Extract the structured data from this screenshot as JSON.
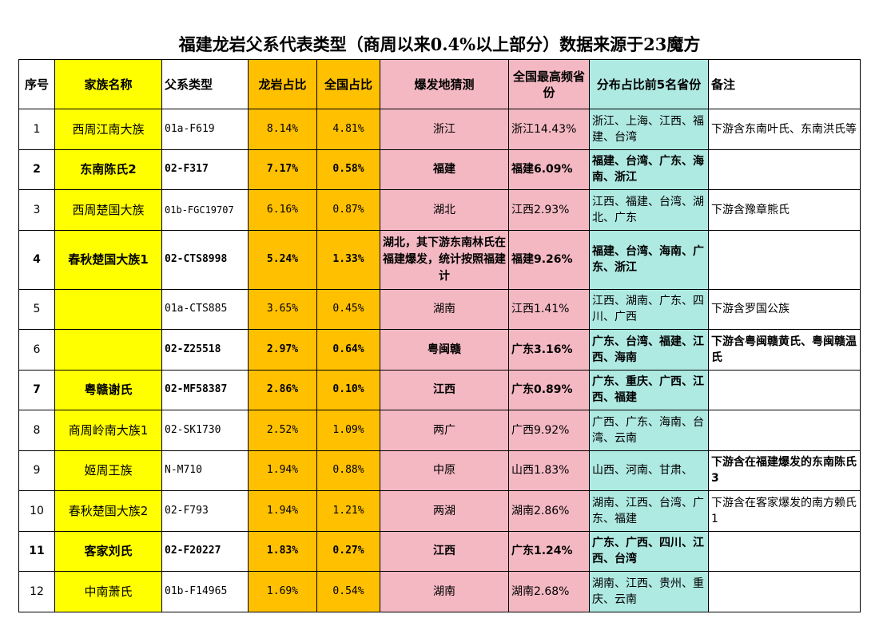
{
  "title": "福建龙岩父系代表类型（商周以来0.4%以上部分）数据来源于23魔方",
  "colors": {
    "yellow": "#ffff00",
    "orange": "#ffc000",
    "pink": "#f4b8c2",
    "teal": "#aee9e2",
    "white": "#ffffff"
  },
  "headers": {
    "num": "序号",
    "family": "家族名称",
    "type": "父系类型",
    "longyan": "龙岩占比",
    "national": "全国占比",
    "burst": "爆发地猜测",
    "highest": "全国最高频省份",
    "dist": "分布占比前5名省份",
    "note": "备注"
  },
  "rows": [
    {
      "num": "1",
      "family": "西周江南大族",
      "type": "01a-F619",
      "longyan": "8.14%",
      "national": "4.81%",
      "burst": "浙江",
      "highest": "浙江14.43%",
      "dist": "浙江、上海、江西、福建、台湾",
      "note": "下游含东南叶氏、东南洪氏等"
    },
    {
      "num": "2",
      "family": "东南陈氏2",
      "type": "02-F317",
      "longyan": "7.17%",
      "national": "0.58%",
      "burst": "福建",
      "highest": "福建6.09%",
      "dist": "福建、台湾、广东、海南、浙江",
      "note": ""
    },
    {
      "num": "3",
      "family": "西周楚国大族",
      "type": "01b-FGC19707",
      "longyan": "6.16%",
      "national": "0.87%",
      "burst": "湖北",
      "highest": "江西2.93%",
      "dist": "江西、福建、台湾、湖北、广东",
      "note": "下游含豫章熊氏"
    },
    {
      "num": "4",
      "family": "春秋楚国大族1",
      "type": "02-CTS8998",
      "longyan": "5.24%",
      "national": "1.33%",
      "burst": "湖北，其下游东南林氏在福建爆发，统计按照福建计",
      "highest": "福建9.26%",
      "dist": "福建、台湾、海南、广东、浙江",
      "note": ""
    },
    {
      "num": "5",
      "family": "",
      "type": "01a-CTS885",
      "longyan": "3.65%",
      "national": "0.45%",
      "burst": "湖南",
      "highest": "江西1.41%",
      "dist": "江西、湖南、广东、四川、广西",
      "note": "下游含罗国公族"
    },
    {
      "num": "6",
      "family": "",
      "type": "02-Z25518",
      "longyan": "2.97%",
      "national": "0.64%",
      "burst": "粤闽赣",
      "highest": "广东3.16%",
      "dist": "广东、台湾、福建、江西、海南",
      "note": "下游含粤闽赣黄氏、粤闽赣温氏"
    },
    {
      "num": "7",
      "family": "粤赣谢氏",
      "type": "02-MF58387",
      "longyan": "2.86%",
      "national": "0.10%",
      "burst": "江西",
      "highest": "广东0.89%",
      "dist": "广东、重庆、广西、江西、福建",
      "note": ""
    },
    {
      "num": "8",
      "family": "商周岭南大族1",
      "type": "02-SK1730",
      "longyan": "2.52%",
      "national": "1.09%",
      "burst": "两广",
      "highest": "广西9.92%",
      "dist": "广西、广东、海南、台湾、云南",
      "note": ""
    },
    {
      "num": "9",
      "family": "姬周王族",
      "type": "N-M710",
      "longyan": "1.94%",
      "national": "0.88%",
      "burst": "中原",
      "highest": "山西1.83%",
      "dist": "山西、河南、甘肃、",
      "note": "下游含在福建爆发的东南陈氏3"
    },
    {
      "num": "10",
      "family": "春秋楚国大族2",
      "type": "02-F793",
      "longyan": "1.94%",
      "national": "1.21%",
      "burst": "两湖",
      "highest": "湖南2.86%",
      "dist": "湖南、江西、台湾、广东、福建",
      "note": "下游含在客家爆发的南方赖氏1"
    },
    {
      "num": "11",
      "family": "客家刘氏",
      "type": "02-F20227",
      "longyan": "1.83%",
      "national": "0.27%",
      "burst": "江西",
      "highest": "广东1.24%",
      "dist": "广东、广西、四川、江西、台湾",
      "note": ""
    },
    {
      "num": "12",
      "family": "中南萧氏",
      "type": "01b-F14965",
      "longyan": "1.69%",
      "national": "0.54%",
      "burst": "湖南",
      "highest": "湖南2.68%",
      "dist": "湖南、江西、贵州、重庆、云南",
      "note": ""
    }
  ]
}
